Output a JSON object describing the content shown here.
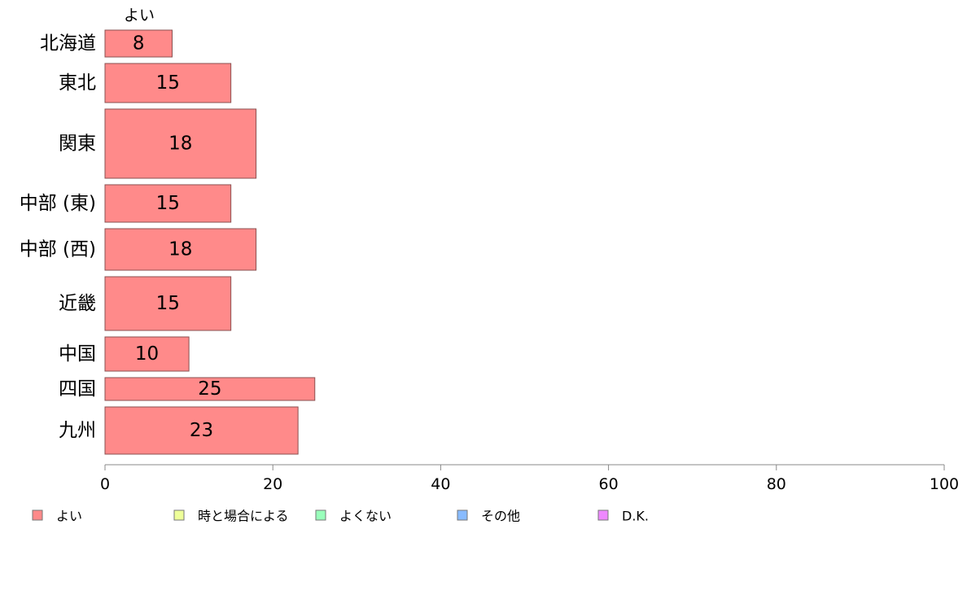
{
  "chart_data": {
    "type": "bar",
    "orientation": "horizontal",
    "stacked": true,
    "top_label": "よい",
    "categories": [
      "北海道",
      "東北",
      "関東",
      "中部 (東)",
      "中部 (西)",
      "近畿",
      "中国",
      "四国",
      "九州"
    ],
    "series": [
      {
        "name": "よい",
        "color": "#ff8a8a",
        "values": [
          8,
          15,
          18,
          15,
          18,
          15,
          10,
          25,
          23
        ]
      },
      {
        "name": "時と場合による",
        "color": "#eeff99",
        "values": [
          0,
          0,
          0,
          0,
          0,
          0,
          0,
          0,
          0
        ]
      },
      {
        "name": "よくない",
        "color": "#99ffbb",
        "values": [
          0,
          0,
          0,
          0,
          0,
          0,
          0,
          0,
          0
        ]
      },
      {
        "name": "その他",
        "color": "#88bbff",
        "values": [
          0,
          0,
          0,
          0,
          0,
          0,
          0,
          0,
          0
        ]
      },
      {
        "name": "D.K.",
        "color": "#ee88ff",
        "values": [
          0,
          0,
          0,
          0,
          0,
          0,
          0,
          0,
          0
        ]
      }
    ],
    "bar_labels": [
      "8",
      "15",
      "18",
      "15",
      "18",
      "15",
      "10",
      "25",
      "23"
    ],
    "xlim": [
      0,
      100
    ],
    "xticks": [
      0,
      20,
      40,
      60,
      80,
      100
    ],
    "xtick_labels": [
      "0",
      "20",
      "40",
      "60",
      "80",
      "100"
    ],
    "grid": false,
    "legend_position": "bottom"
  }
}
